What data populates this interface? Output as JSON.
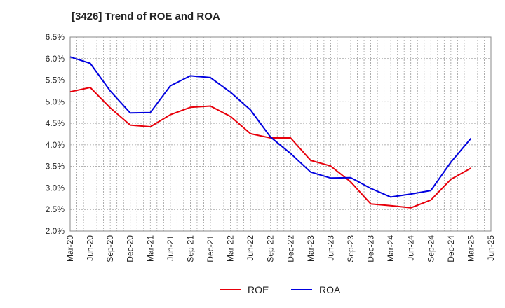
{
  "chart_data": {
    "type": "line",
    "title": "[3426]  Trend of ROE and ROA",
    "categories": [
      "Mar-20",
      "Jun-20",
      "Sep-20",
      "Dec-20",
      "Mar-21",
      "Jun-21",
      "Sep-21",
      "Dec-21",
      "Mar-22",
      "Jun-22",
      "Sep-22",
      "Dec-22",
      "Mar-23",
      "Jun-23",
      "Sep-23",
      "Dec-23",
      "Mar-24",
      "Jun-24",
      "Sep-24",
      "Dec-24",
      "Mar-25",
      "Jun-25"
    ],
    "y_ticks": [
      "2.0%",
      "2.5%",
      "3.0%",
      "3.5%",
      "4.0%",
      "4.5%",
      "5.0%",
      "5.5%",
      "6.0%",
      "6.5%"
    ],
    "ylim": [
      2.0,
      6.5
    ],
    "grid": true,
    "legend_position": "bottom",
    "series": [
      {
        "name": "ROE",
        "color": "#e8000b",
        "values": [
          5.23,
          5.33,
          4.86,
          4.46,
          4.42,
          4.7,
          4.87,
          4.9,
          4.66,
          4.26,
          4.16,
          4.16,
          3.64,
          3.51,
          3.14,
          2.63,
          2.59,
          2.54,
          2.72,
          3.2,
          3.46,
          null
        ]
      },
      {
        "name": "ROA",
        "color": "#0000e0",
        "values": [
          6.04,
          5.89,
          5.25,
          4.74,
          4.75,
          5.37,
          5.6,
          5.56,
          5.22,
          4.81,
          4.18,
          3.8,
          3.37,
          3.23,
          3.24,
          2.99,
          2.79,
          2.86,
          2.94,
          3.6,
          4.15,
          null
        ]
      }
    ]
  }
}
